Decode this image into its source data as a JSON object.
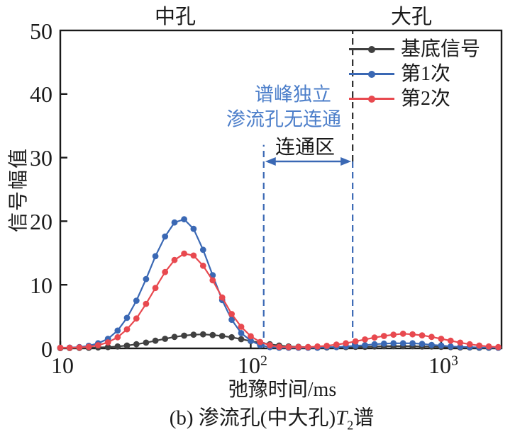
{
  "figure": {
    "top_labels": {
      "mesopore": "中孔",
      "macropore": "大孔"
    },
    "y_axis": {
      "title": "信号幅值",
      "ticks": [
        "0",
        "10",
        "20",
        "30",
        "40",
        "50"
      ]
    },
    "x_axis": {
      "title": "弛豫时间/ms",
      "ticks": [
        {
          "base": "10",
          "sup": ""
        },
        {
          "base": "10",
          "sup": "2"
        },
        {
          "base": "10",
          "sup": "3"
        }
      ]
    },
    "caption": {
      "prefix": "(b) 渗流孔(中大孔)",
      "symbol": "T",
      "subscript": "2",
      "suffix": "谱"
    },
    "legend": [
      {
        "label": "基底信号",
        "color": "#404040"
      },
      {
        "label": "第1次",
        "color": "#3a68b4"
      },
      {
        "label": "第2次",
        "color": "#e8494f"
      }
    ],
    "annotations": {
      "peak_line1": "谱峰独立",
      "peak_line2": "渗流孔无连通",
      "connect_zone": "连通区"
    }
  },
  "chart_data": {
    "type": "line",
    "title": "",
    "xlabel": "弛豫时间/ms",
    "ylabel": "信号幅值",
    "x_scale": "log",
    "x_range_ms": [
      10,
      2075
    ],
    "ylim": [
      0,
      50
    ],
    "grid": false,
    "legend_position": "top-right",
    "frame_color": "#1a1a1a",
    "y_tick_values": [
      0,
      10,
      20,
      30,
      40,
      50
    ],
    "x_tick_values_ms": [
      10,
      100,
      1000
    ],
    "x_ms": [
      10,
      11.2,
      12.6,
      14.1,
      15.8,
      17.8,
      20,
      22.4,
      25.1,
      28.2,
      31.6,
      35.5,
      39.8,
      44.7,
      50.1,
      56.2,
      63.1,
      70.8,
      79.4,
      89.1,
      100,
      112,
      126,
      141,
      158,
      178,
      200,
      224,
      251,
      282,
      316,
      355,
      398,
      447,
      501,
      562,
      631,
      708,
      794,
      891,
      1000,
      1122,
      1259,
      1413,
      1585,
      1778,
      1995
    ],
    "series": [
      {
        "name": "基底信号",
        "color": "#404040",
        "values": [
          0.05,
          0.06,
          0.08,
          0.1,
          0.15,
          0.2,
          0.3,
          0.45,
          0.65,
          0.9,
          1.2,
          1.5,
          1.8,
          2.0,
          2.15,
          2.2,
          2.1,
          1.95,
          1.75,
          1.45,
          1.15,
          0.9,
          0.65,
          0.45,
          0.3,
          0.25,
          0.2,
          0.15,
          0.15,
          0.2,
          0.2,
          0.25,
          0.25,
          0.3,
          0.35,
          0.35,
          0.35,
          0.35,
          0.3,
          0.3,
          0.25,
          0.2,
          0.15,
          0.15,
          0.1,
          0.1,
          0.1
        ]
      },
      {
        "name": "第1次",
        "color": "#3a68b4",
        "values": [
          0.1,
          0.12,
          0.2,
          0.4,
          0.8,
          1.5,
          2.8,
          4.8,
          7.5,
          10.9,
          14.5,
          17.6,
          19.8,
          20.3,
          18.8,
          15.5,
          11.5,
          7.6,
          4.5,
          2.4,
          1.2,
          0.5,
          0.2,
          0.1,
          0.1,
          0.1,
          0.1,
          0.1,
          0.2,
          0.2,
          0.3,
          0.4,
          0.5,
          0.65,
          0.75,
          0.8,
          0.8,
          0.8,
          0.7,
          0.55,
          0.45,
          0.3,
          0.25,
          0.2,
          0.15,
          0.12,
          0.1
        ]
      },
      {
        "name": "第2次",
        "color": "#e8494f",
        "values": [
          0.1,
          0.1,
          0.15,
          0.25,
          0.5,
          0.95,
          1.75,
          3.0,
          4.7,
          7.0,
          9.5,
          12.0,
          13.9,
          14.9,
          14.6,
          13.0,
          10.7,
          8.0,
          5.4,
          3.4,
          1.9,
          1.0,
          0.5,
          0.25,
          0.2,
          0.2,
          0.2,
          0.3,
          0.4,
          0.6,
          0.8,
          1.1,
          1.4,
          1.7,
          1.95,
          2.15,
          2.3,
          2.2,
          2.05,
          1.8,
          1.5,
          1.2,
          0.9,
          0.65,
          0.45,
          0.3,
          0.2
        ]
      }
    ],
    "reference_lines": [
      {
        "x_ms": 117,
        "color": "#3a68b4",
        "v_from": 0,
        "v_to": 32,
        "style": "dashed"
      },
      {
        "x_ms": 343,
        "color": "#2a2a2a",
        "v_from": 29.4,
        "v_to": 50,
        "style": "dashed"
      },
      {
        "x_ms": 343,
        "color": "#3a68b4",
        "v_from": 0,
        "v_to": 29.4,
        "style": "dashed"
      }
    ],
    "connect_zone": {
      "from_ms": 117,
      "to_ms": 343,
      "v": 29.4,
      "color": "#3a68b4"
    }
  }
}
